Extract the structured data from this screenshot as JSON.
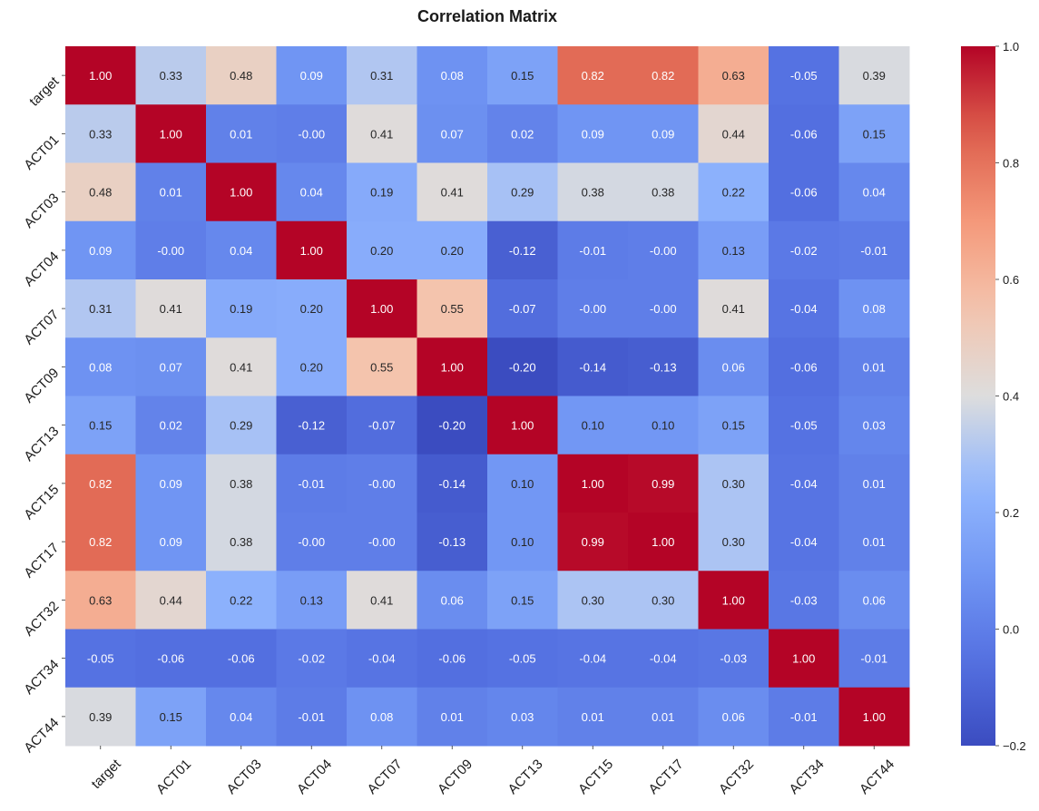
{
  "chart_data": {
    "type": "heatmap",
    "title": "Correlation Matrix",
    "xlabel": "",
    "ylabel": "",
    "x_categories": [
      "target",
      "ACT01",
      "ACT03",
      "ACT04",
      "ACT07",
      "ACT09",
      "ACT13",
      "ACT15",
      "ACT17",
      "ACT32",
      "ACT34",
      "ACT44"
    ],
    "y_categories": [
      "target",
      "ACT01",
      "ACT03",
      "ACT04",
      "ACT07",
      "ACT09",
      "ACT13",
      "ACT15",
      "ACT17",
      "ACT32",
      "ACT34",
      "ACT44"
    ],
    "values": [
      [
        1.0,
        0.33,
        0.48,
        0.09,
        0.31,
        0.08,
        0.15,
        0.82,
        0.82,
        0.63,
        -0.05,
        0.39
      ],
      [
        0.33,
        1.0,
        0.01,
        -0.0,
        0.41,
        0.07,
        0.02,
        0.09,
        0.09,
        0.44,
        -0.06,
        0.15
      ],
      [
        0.48,
        0.01,
        1.0,
        0.04,
        0.19,
        0.41,
        0.29,
        0.38,
        0.38,
        0.22,
        -0.06,
        0.04
      ],
      [
        0.09,
        -0.0,
        0.04,
        1.0,
        0.2,
        0.2,
        -0.12,
        -0.01,
        -0.0,
        0.13,
        -0.02,
        -0.01
      ],
      [
        0.31,
        0.41,
        0.19,
        0.2,
        1.0,
        0.55,
        -0.07,
        -0.0,
        -0.0,
        0.41,
        -0.04,
        0.08
      ],
      [
        0.08,
        0.07,
        0.41,
        0.2,
        0.55,
        1.0,
        -0.2,
        -0.14,
        -0.13,
        0.06,
        -0.06,
        0.01
      ],
      [
        0.15,
        0.02,
        0.29,
        -0.12,
        -0.07,
        -0.2,
        1.0,
        0.1,
        0.1,
        0.15,
        -0.05,
        0.03
      ],
      [
        0.82,
        0.09,
        0.38,
        -0.01,
        -0.0,
        -0.14,
        0.1,
        1.0,
        0.99,
        0.3,
        -0.04,
        0.01
      ],
      [
        0.82,
        0.09,
        0.38,
        -0.0,
        -0.0,
        -0.13,
        0.1,
        0.99,
        1.0,
        0.3,
        -0.04,
        0.01
      ],
      [
        0.63,
        0.44,
        0.22,
        0.13,
        0.41,
        0.06,
        0.15,
        0.3,
        0.3,
        1.0,
        -0.03,
        0.06
      ],
      [
        -0.05,
        -0.06,
        -0.06,
        -0.02,
        -0.04,
        -0.06,
        -0.05,
        -0.04,
        -0.04,
        -0.03,
        1.0,
        -0.01
      ],
      [
        0.39,
        0.15,
        0.04,
        -0.01,
        0.08,
        0.01,
        0.03,
        0.01,
        0.01,
        0.06,
        -0.01,
        1.0
      ]
    ],
    "colormap": "coolwarm",
    "vmin": -0.2,
    "vmax": 1.0,
    "colorbar_ticks": [
      -0.2,
      0.0,
      0.2,
      0.4,
      0.6,
      0.8,
      1.0
    ],
    "annotation_format": "2 decimals",
    "legend": "colorbar-right",
    "grid": false
  }
}
